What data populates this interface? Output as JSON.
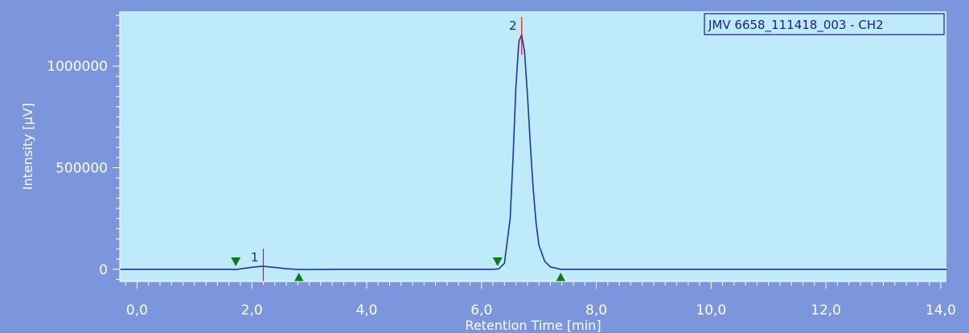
{
  "chart_data": {
    "type": "line",
    "title": "",
    "legend": [
      "JMV 6658_111418_003 - CH2"
    ],
    "legend_position": "top-right",
    "xlabel": "Retention Time [min]",
    "ylabel": "Intensity [µV]",
    "xlim": [
      -0.3,
      14.1
    ],
    "ylim": [
      -60000,
      1270000
    ],
    "x_ticks": [
      0,
      2,
      4,
      6,
      8,
      10,
      12,
      14
    ],
    "x_tick_labels": [
      "0,0",
      "2,0",
      "4,0",
      "6,0",
      "8,0",
      "10,0",
      "12,0",
      "14,0"
    ],
    "y_ticks": [
      0,
      500000,
      1000000
    ],
    "y_tick_labels": [
      "0",
      "500000",
      "1000000"
    ],
    "grid": false,
    "colors": {
      "background": "#7b96dc",
      "plot_area": "#bfeafa",
      "trace": "#2233a8",
      "peak_marker": "#e01818",
      "baseline_marker": "#0e7a1e"
    },
    "peaks": [
      {
        "label": "1",
        "x": 2.2,
        "y": 15000,
        "start": 1.72,
        "end": 2.82
      },
      {
        "label": "2",
        "x": 6.7,
        "y": 1155000,
        "start": 6.28,
        "end": 7.38
      }
    ],
    "series": [
      {
        "name": "JMV 6658_111418_003 - CH2",
        "x": [
          -0.3,
          1.6,
          1.72,
          1.85,
          2.0,
          2.1,
          2.2,
          2.3,
          2.45,
          2.6,
          2.82,
          3.6,
          6.2,
          6.3,
          6.4,
          6.5,
          6.55,
          6.6,
          6.65,
          6.7,
          6.75,
          6.8,
          6.85,
          6.9,
          6.95,
          7.0,
          7.1,
          7.2,
          7.38,
          14.1
        ],
        "y": [
          0,
          0,
          -1000,
          4000,
          10000,
          13000,
          15000,
          12000,
          8000,
          3000,
          -1000,
          0,
          0,
          2000,
          30000,
          250000,
          550000,
          900000,
          1120000,
          1155000,
          1070000,
          860000,
          620000,
          400000,
          230000,
          120000,
          40000,
          12000,
          0,
          0
        ]
      }
    ]
  }
}
